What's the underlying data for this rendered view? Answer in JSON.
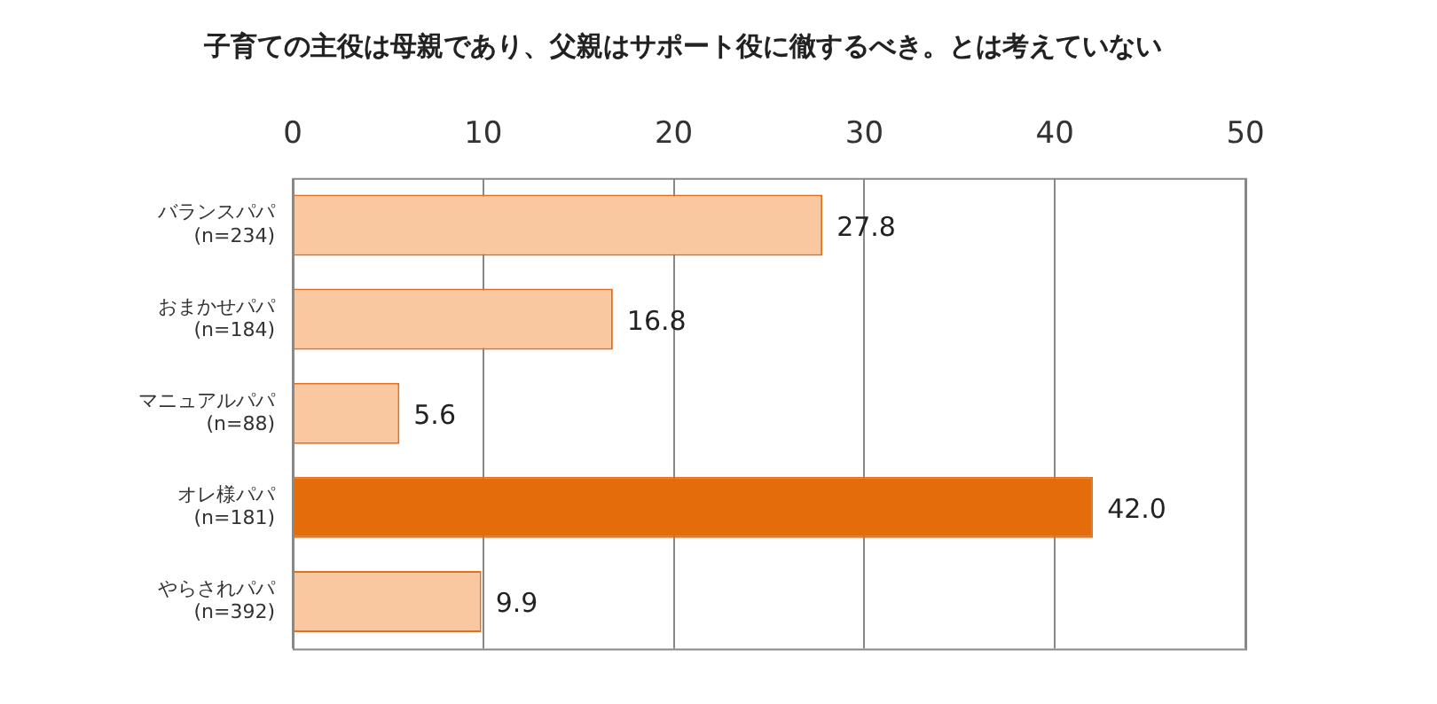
{
  "chart_data": {
    "type": "bar",
    "orientation": "horizontal",
    "title": "子育ての主役は母親であり、父親はサポート役に徹するべき。とは考えていない",
    "categories": [
      "バランスパパ\n(n=234)",
      "おまかせパパ\n(n=184)",
      "マニュアルパパ\n(n=88)",
      "オレ様パパ\n(n=181)",
      "やらされパパ\n(n=392)"
    ],
    "values": [
      27.8,
      16.8,
      5.6,
      42.0,
      9.9
    ],
    "colors": [
      "#fac8a0",
      "#fac8a0",
      "#fac8a0",
      "#e46c0a",
      "#fac8a0"
    ],
    "value_labels": [
      "27.8",
      "16.8",
      "5.6",
      "42.0",
      "9.9"
    ],
    "xlim": [
      0,
      50
    ],
    "xticks": [
      0,
      10,
      20,
      30,
      40,
      50
    ],
    "grid": "x",
    "legend": false
  }
}
